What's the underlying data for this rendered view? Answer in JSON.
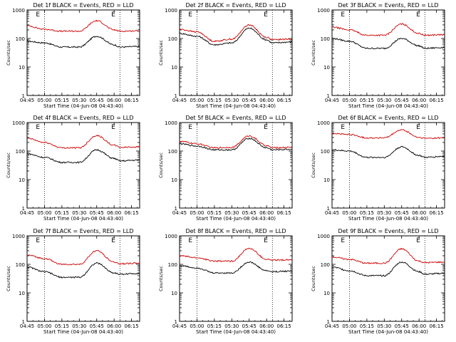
{
  "chart_data": [
    {
      "type": "line",
      "title": "Det 1f BLACK = Events, RED = LLD",
      "xlabel": "Start Time (04-Jun-08 04:43:40)",
      "ylabel": "Counts/sec",
      "yscale": "log",
      "ylim": [
        1,
        1000
      ],
      "xlim": [
        "04:45",
        "06:22"
      ],
      "x_ticks": [
        "04:45",
        "05:00",
        "05:15",
        "05:30",
        "05:45",
        "06:00",
        "06:15"
      ],
      "y_ticks": [
        "1",
        "10",
        "100",
        "1000"
      ],
      "markers": [
        "05:00",
        "06:05"
      ],
      "marker_labels": [
        "E",
        "E"
      ],
      "series": [
        {
          "color": "#000000",
          "times": [
            "04:45",
            "05:00",
            "05:15",
            "05:30",
            "05:45",
            "06:00",
            "06:05",
            "06:20"
          ],
          "values": [
            80,
            70,
            50,
            50,
            120,
            60,
            50,
            52
          ]
        },
        {
          "color": "#cc0000",
          "times": [
            "04:45",
            "05:00",
            "05:15",
            "05:30",
            "05:45",
            "06:00",
            "06:05",
            "06:20"
          ],
          "values": [
            280,
            210,
            180,
            180,
            420,
            200,
            180,
            185
          ]
        }
      ]
    },
    {
      "type": "line",
      "title": "Det 2f BLACK = Events, RED = LLD",
      "xlabel": "Start Time (04-Jun-08 04:43:40)",
      "ylabel": "Counts/sec",
      "yscale": "log",
      "ylim": [
        1,
        1000
      ],
      "xlim": [
        "04:45",
        "06:22"
      ],
      "x_ticks": [
        "04:45",
        "05:00",
        "05:15",
        "05:30",
        "05:45",
        "06:00",
        "06:15"
      ],
      "y_ticks": [
        "1",
        "10",
        "100",
        "1000"
      ],
      "markers": [
        "05:00",
        "06:05"
      ],
      "marker_labels": [
        "E",
        "E"
      ],
      "series": [
        {
          "color": "#000000",
          "times": [
            "04:45",
            "05:00",
            "05:15",
            "05:30",
            "05:45",
            "06:00",
            "06:05",
            "06:20"
          ],
          "values": [
            150,
            120,
            60,
            70,
            230,
            90,
            70,
            75
          ]
        },
        {
          "color": "#cc0000",
          "times": [
            "04:45",
            "05:00",
            "05:15",
            "05:30",
            "05:45",
            "06:00",
            "06:05",
            "06:20"
          ],
          "values": [
            210,
            170,
            80,
            95,
            300,
            110,
            90,
            95
          ]
        }
      ]
    },
    {
      "type": "line",
      "title": "Det 3f BLACK = Events, RED = LLD",
      "xlabel": "Start Time (04-Jun-08 04:43:40)",
      "ylabel": "Counts/sec",
      "yscale": "log",
      "ylim": [
        1,
        1000
      ],
      "xlim": [
        "04:45",
        "06:22"
      ],
      "x_ticks": [
        "04:45",
        "05:00",
        "05:15",
        "05:30",
        "05:45",
        "06:00",
        "06:15"
      ],
      "y_ticks": [
        "1",
        "10",
        "100",
        "1000"
      ],
      "markers": [
        "05:00",
        "06:05"
      ],
      "marker_labels": [
        "E",
        "E"
      ],
      "series": [
        {
          "color": "#000000",
          "times": [
            "04:45",
            "05:00",
            "05:15",
            "05:30",
            "05:45",
            "06:00",
            "06:05",
            "06:20"
          ],
          "values": [
            100,
            80,
            45,
            45,
            100,
            55,
            45,
            48
          ]
        },
        {
          "color": "#cc0000",
          "times": [
            "04:45",
            "05:00",
            "05:15",
            "05:30",
            "05:45",
            "06:00",
            "06:05",
            "06:20"
          ],
          "values": [
            250,
            200,
            130,
            130,
            320,
            150,
            130,
            135
          ]
        }
      ]
    },
    {
      "type": "line",
      "title": "Det 4f BLACK = Events, RED = LLD",
      "xlabel": "Start Time (04-Jun-08 04:43:40)",
      "ylabel": "Counts/sec",
      "yscale": "log",
      "ylim": [
        1,
        1000
      ],
      "xlim": [
        "04:45",
        "06:22"
      ],
      "x_ticks": [
        "04:45",
        "05:00",
        "05:15",
        "05:30",
        "05:45",
        "06:00",
        "06:15"
      ],
      "y_ticks": [
        "1",
        "10",
        "100",
        "1000"
      ],
      "markers": [
        "05:00",
        "06:05"
      ],
      "marker_labels": [
        "E",
        "E"
      ],
      "series": [
        {
          "color": "#000000",
          "times": [
            "04:45",
            "05:00",
            "05:15",
            "05:30",
            "05:45",
            "06:00",
            "06:05",
            "06:20"
          ],
          "values": [
            80,
            60,
            40,
            40,
            110,
            55,
            45,
            48
          ]
        },
        {
          "color": "#cc0000",
          "times": [
            "04:45",
            "05:00",
            "05:15",
            "05:30",
            "05:45",
            "06:00",
            "06:05",
            "06:20"
          ],
          "values": [
            280,
            200,
            130,
            130,
            350,
            160,
            135,
            140
          ]
        }
      ]
    },
    {
      "type": "line",
      "title": "Det 5f BLACK = Events, RED = LLD",
      "xlabel": "Start Time (04-Jun-08 04:43:40)",
      "ylabel": "Counts/sec",
      "yscale": "log",
      "ylim": [
        1,
        1000
      ],
      "xlim": [
        "04:45",
        "06:22"
      ],
      "x_ticks": [
        "04:45",
        "05:00",
        "05:15",
        "05:30",
        "05:45",
        "06:00",
        "06:15"
      ],
      "y_ticks": [
        "1",
        "10",
        "100",
        "1000"
      ],
      "markers": [
        "05:00",
        "06:05"
      ],
      "marker_labels": [
        "E",
        "E"
      ],
      "series": [
        {
          "color": "#000000",
          "times": [
            "04:45",
            "05:00",
            "05:15",
            "05:30",
            "05:45",
            "06:00",
            "06:05",
            "06:20"
          ],
          "values": [
            180,
            150,
            110,
            110,
            280,
            130,
            110,
            115
          ]
        },
        {
          "color": "#cc0000",
          "times": [
            "04:45",
            "05:00",
            "05:15",
            "05:30",
            "05:45",
            "06:00",
            "06:05",
            "06:20"
          ],
          "values": [
            220,
            180,
            130,
            135,
            340,
            155,
            130,
            135
          ]
        }
      ]
    },
    {
      "type": "line",
      "title": "Det 6f BLACK = Events, RED = LLD",
      "xlabel": "Start Time (04-Jun-08 04:43:40)",
      "ylabel": "Counts/sec",
      "yscale": "log",
      "ylim": [
        1,
        1000
      ],
      "xlim": [
        "04:45",
        "06:22"
      ],
      "x_ticks": [
        "04:45",
        "05:00",
        "05:15",
        "05:30",
        "05:45",
        "06:00",
        "06:15"
      ],
      "y_ticks": [
        "1",
        "10",
        "100",
        "1000"
      ],
      "markers": [
        "05:00",
        "06:05"
      ],
      "marker_labels": [
        "E",
        "E"
      ],
      "series": [
        {
          "color": "#000000",
          "times": [
            "04:45",
            "05:00",
            "05:15",
            "05:30",
            "05:45",
            "06:00",
            "06:05",
            "06:20"
          ],
          "values": [
            110,
            100,
            60,
            60,
            140,
            70,
            60,
            65
          ]
        },
        {
          "color": "#cc0000",
          "times": [
            "04:45",
            "05:00",
            "05:15",
            "05:30",
            "05:45",
            "06:00",
            "06:05",
            "06:20"
          ],
          "values": [
            420,
            380,
            290,
            290,
            550,
            300,
            280,
            290
          ]
        }
      ]
    },
    {
      "type": "line",
      "title": "Det 7f BLACK = Events, RED = LLD",
      "xlabel": "Start Time (04-Jun-08 04:43:40)",
      "ylabel": "Counts/sec",
      "yscale": "log",
      "ylim": [
        1,
        1000
      ],
      "xlim": [
        "04:45",
        "06:22"
      ],
      "x_ticks": [
        "04:45",
        "05:00",
        "05:15",
        "05:30",
        "05:45",
        "06:00",
        "06:15"
      ],
      "y_ticks": [
        "1",
        "10",
        "100",
        "1000"
      ],
      "markers": [
        "05:00",
        "06:05"
      ],
      "marker_labels": [
        "E",
        "E"
      ],
      "series": [
        {
          "color": "#000000",
          "times": [
            "04:45",
            "05:00",
            "05:15",
            "05:30",
            "05:45",
            "06:00",
            "06:05",
            "06:20"
          ],
          "values": [
            80,
            55,
            35,
            35,
            110,
            50,
            45,
            48
          ]
        },
        {
          "color": "#cc0000",
          "times": [
            "04:45",
            "05:00",
            "05:15",
            "05:30",
            "05:45",
            "06:00",
            "06:05",
            "06:20"
          ],
          "values": [
            210,
            160,
            100,
            100,
            300,
            120,
            105,
            110
          ]
        }
      ]
    },
    {
      "type": "line",
      "title": "Det 8f BLACK = Events, RED = LLD",
      "xlabel": "Start Time (04-Jun-08 04:43:40)",
      "ylabel": "Counts/sec",
      "yscale": "log",
      "ylim": [
        1,
        1000
      ],
      "xlim": [
        "04:45",
        "06:22"
      ],
      "x_ticks": [
        "04:45",
        "05:00",
        "05:15",
        "05:30",
        "05:45",
        "06:00",
        "06:15"
      ],
      "y_ticks": [
        "1",
        "10",
        "100",
        "1000"
      ],
      "markers": [
        "05:00",
        "06:05"
      ],
      "marker_labels": [
        "E",
        "E"
      ],
      "series": [
        {
          "color": "#000000",
          "times": [
            "04:45",
            "05:00",
            "05:15",
            "05:30",
            "05:45",
            "06:00",
            "06:05",
            "06:20"
          ],
          "values": [
            90,
            75,
            50,
            50,
            120,
            60,
            55,
            58
          ]
        },
        {
          "color": "#cc0000",
          "times": [
            "04:45",
            "05:00",
            "05:15",
            "05:30",
            "05:45",
            "06:00",
            "06:05",
            "06:20"
          ],
          "values": [
            200,
            170,
            130,
            130,
            360,
            150,
            140,
            145
          ]
        }
      ]
    },
    {
      "type": "line",
      "title": "Det 9f BLACK = Events, RED = LLD",
      "xlabel": "Start Time (04-Jun-08 04:43:40)",
      "ylabel": "Counts/sec",
      "yscale": "log",
      "ylim": [
        1,
        1000
      ],
      "xlim": [
        "04:45",
        "06:22"
      ],
      "x_ticks": [
        "04:45",
        "05:00",
        "05:15",
        "05:30",
        "05:45",
        "06:00",
        "06:15"
      ],
      "y_ticks": [
        "1",
        "10",
        "100",
        "1000"
      ],
      "markers": [
        "05:00",
        "06:05"
      ],
      "marker_labels": [
        "E",
        "E"
      ],
      "series": [
        {
          "color": "#000000",
          "times": [
            "04:45",
            "05:00",
            "05:15",
            "05:30",
            "05:45",
            "06:00",
            "06:05",
            "06:20"
          ],
          "values": [
            80,
            60,
            40,
            40,
            120,
            55,
            45,
            48
          ]
        },
        {
          "color": "#cc0000",
          "times": [
            "04:45",
            "05:00",
            "05:15",
            "05:30",
            "05:45",
            "06:00",
            "06:05",
            "06:20"
          ],
          "values": [
            180,
            150,
            110,
            110,
            350,
            130,
            115,
            120
          ]
        }
      ]
    }
  ]
}
